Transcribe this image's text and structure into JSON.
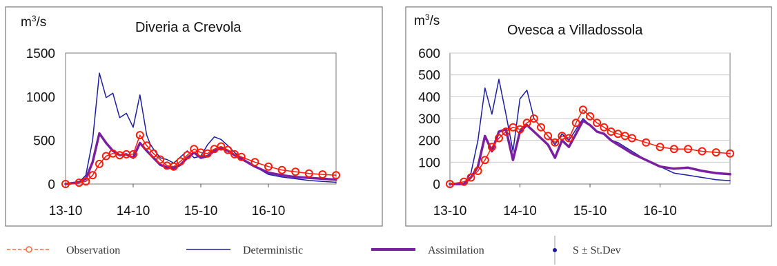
{
  "chart_data": [
    {
      "type": "line",
      "title": "Diveria a Crevola",
      "ylabel_base": "m",
      "ylabel_exp": "3",
      "ylabel_rest": "/s",
      "ylim": [
        0,
        1500
      ],
      "yticks": [
        0,
        500,
        1000,
        1500
      ],
      "xlim": [
        0,
        4
      ],
      "xticks": [
        0,
        1,
        2,
        3
      ],
      "xtick_labels": [
        "13-10",
        "14-10",
        "15-10",
        "16-10"
      ],
      "grid": false,
      "series": [
        {
          "name": "Deterministic",
          "x": [
            0,
            0.2,
            0.3,
            0.4,
            0.5,
            0.6,
            0.7,
            0.8,
            0.9,
            1.0,
            1.1,
            1.2,
            1.25,
            1.3,
            1.4,
            1.5,
            1.6,
            1.7,
            1.8,
            1.9,
            2.0,
            2.1,
            2.2,
            2.3,
            2.4,
            2.5,
            2.6,
            2.8,
            3.0,
            3.2,
            3.4,
            3.6,
            3.8,
            4.0
          ],
          "y": [
            0,
            20,
            100,
            500,
            1270,
            990,
            1040,
            760,
            810,
            650,
            1020,
            560,
            460,
            400,
            300,
            280,
            240,
            310,
            380,
            300,
            320,
            450,
            540,
            510,
            440,
            360,
            300,
            200,
            110,
            80,
            60,
            40,
            30,
            20
          ]
        },
        {
          "name": "Assimilation",
          "x": [
            0,
            0.2,
            0.3,
            0.4,
            0.5,
            0.6,
            0.7,
            0.8,
            0.9,
            1.0,
            1.1,
            1.2,
            1.3,
            1.4,
            1.5,
            1.6,
            1.7,
            1.8,
            1.9,
            2.0,
            2.1,
            2.2,
            2.3,
            2.4,
            2.5,
            2.6,
            2.8,
            3.0,
            3.2,
            3.4,
            3.6,
            3.8,
            4.0
          ],
          "y": [
            0,
            20,
            60,
            250,
            580,
            470,
            380,
            330,
            340,
            300,
            470,
            380,
            300,
            220,
            190,
            180,
            220,
            300,
            360,
            300,
            320,
            380,
            410,
            380,
            330,
            290,
            200,
            130,
            100,
            80,
            70,
            60,
            50
          ]
        },
        {
          "name": "Observation",
          "x": [
            0,
            0.2,
            0.3,
            0.4,
            0.5,
            0.6,
            0.7,
            0.8,
            0.9,
            1.0,
            1.1,
            1.2,
            1.3,
            1.4,
            1.5,
            1.6,
            1.7,
            1.8,
            1.9,
            2.0,
            2.1,
            2.2,
            2.3,
            2.4,
            2.5,
            2.6,
            2.8,
            3.0,
            3.2,
            3.4,
            3.6,
            3.8,
            4.0
          ],
          "y": [
            0,
            15,
            30,
            100,
            230,
            320,
            350,
            330,
            340,
            340,
            560,
            440,
            350,
            280,
            210,
            200,
            260,
            330,
            400,
            360,
            350,
            400,
            430,
            390,
            340,
            310,
            250,
            200,
            160,
            140,
            120,
            110,
            100
          ]
        }
      ]
    },
    {
      "type": "line",
      "title": "Ovesca a Villadossola",
      "ylabel_base": "m",
      "ylabel_exp": "3",
      "ylabel_rest": "/s",
      "ylim": [
        0,
        600
      ],
      "yticks": [
        0,
        100,
        200,
        300,
        400,
        500,
        600
      ],
      "xlim": [
        0,
        4
      ],
      "xticks": [
        0,
        1,
        2,
        3
      ],
      "xtick_labels": [
        "13-10",
        "14-10",
        "15-10",
        "16-10"
      ],
      "grid": true,
      "series": [
        {
          "name": "Deterministic",
          "x": [
            0,
            0.2,
            0.3,
            0.4,
            0.5,
            0.6,
            0.7,
            0.8,
            0.9,
            1.0,
            1.1,
            1.2,
            1.3,
            1.4,
            1.5,
            1.6,
            1.7,
            1.8,
            1.9,
            2.0,
            2.1,
            2.2,
            2.3,
            2.4,
            2.5,
            2.6,
            2.8,
            3.0,
            3.2,
            3.4,
            3.6,
            3.8,
            4.0
          ],
          "y": [
            0,
            0,
            50,
            200,
            440,
            320,
            480,
            320,
            150,
            390,
            430,
            300,
            260,
            220,
            180,
            230,
            200,
            250,
            300,
            270,
            240,
            230,
            200,
            190,
            170,
            150,
            110,
            80,
            50,
            40,
            30,
            20,
            15
          ]
        },
        {
          "name": "Assimilation",
          "x": [
            0,
            0.2,
            0.3,
            0.4,
            0.5,
            0.6,
            0.7,
            0.8,
            0.9,
            1.0,
            1.1,
            1.2,
            1.3,
            1.4,
            1.5,
            1.6,
            1.7,
            1.8,
            1.9,
            2.0,
            2.1,
            2.2,
            2.3,
            2.4,
            2.5,
            2.6,
            2.8,
            3.0,
            3.2,
            3.4,
            3.6,
            3.8,
            4.0
          ],
          "y": [
            0,
            0,
            30,
            80,
            220,
            150,
            240,
            250,
            110,
            240,
            270,
            240,
            210,
            180,
            120,
            200,
            170,
            230,
            290,
            270,
            240,
            230,
            200,
            180,
            160,
            140,
            110,
            80,
            70,
            75,
            60,
            50,
            45
          ]
        },
        {
          "name": "Observation",
          "x": [
            0,
            0.2,
            0.3,
            0.4,
            0.5,
            0.6,
            0.7,
            0.8,
            0.9,
            1.0,
            1.1,
            1.2,
            1.3,
            1.4,
            1.5,
            1.6,
            1.7,
            1.8,
            1.9,
            2.0,
            2.1,
            2.2,
            2.3,
            2.4,
            2.5,
            2.6,
            2.8,
            3.0,
            3.2,
            3.4,
            3.6,
            3.8,
            4.0
          ],
          "y": [
            0,
            10,
            30,
            60,
            110,
            170,
            210,
            240,
            260,
            250,
            280,
            300,
            260,
            220,
            190,
            220,
            210,
            280,
            340,
            310,
            280,
            260,
            240,
            230,
            220,
            210,
            190,
            170,
            160,
            160,
            150,
            145,
            140
          ]
        }
      ]
    }
  ],
  "legend": {
    "placement": "bottom",
    "items": [
      {
        "label": "Observation",
        "style": "observation"
      },
      {
        "label": "Deterministic",
        "style": "deterministic"
      },
      {
        "label": "Assimilation",
        "style": "assimilation"
      },
      {
        "label": "S ± St.Dev",
        "style": "stdev"
      }
    ]
  },
  "colors": {
    "observation": "#ff1a0a",
    "observation_legend": "#ff6a3a",
    "deterministic": "#1c1ca6",
    "assimilation": "#7a1fa0",
    "stdev": "#1a1a9a",
    "frame": "#777777",
    "grid": "#c8c8c8"
  }
}
